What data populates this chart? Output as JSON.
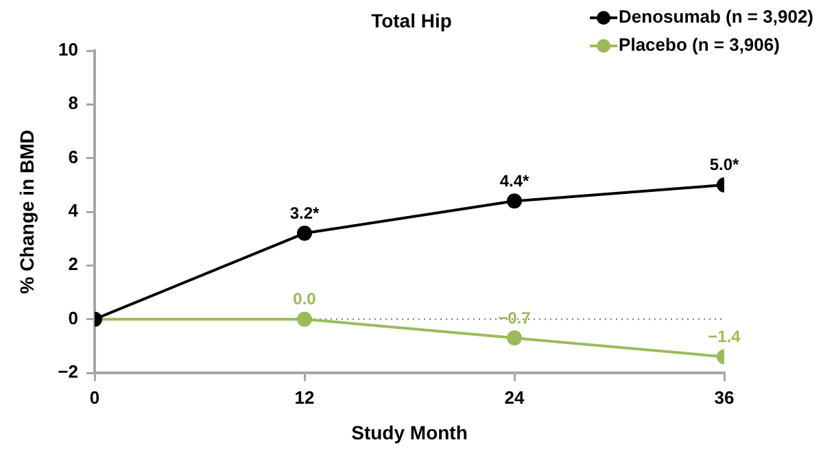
{
  "chart_data": {
    "type": "line",
    "title": "Total Hip",
    "xlabel": "Study Month",
    "ylabel": "% Change in BMD",
    "x": [
      0,
      12,
      24,
      36
    ],
    "series": [
      {
        "name": "Denosumab (n = 3,902)",
        "color": "#000000",
        "values": [
          0,
          3.2,
          4.4,
          5.0
        ],
        "value_labels": [
          null,
          "3.2*",
          "4.4*",
          "5.0*"
        ]
      },
      {
        "name": "Placebo (n = 3,906)",
        "color": "#9bbb59",
        "values": [
          0,
          0.0,
          -0.7,
          -1.4
        ],
        "value_labels": [
          null,
          "0.0",
          "−0.7",
          "−1.4"
        ]
      }
    ],
    "xlim": [
      0,
      36
    ],
    "xticks": [
      0,
      12,
      24,
      36
    ],
    "ylim": [
      -2,
      10
    ],
    "yticks": [
      {
        "value": -2,
        "label": "−2"
      },
      0,
      2,
      4,
      6,
      8,
      10
    ],
    "ref_lines": [
      {
        "axis": "y",
        "value": 0,
        "color": "#808080",
        "line_style": "dotted"
      }
    ],
    "legend": "top right",
    "marker": "circle",
    "line_style": "solid"
  }
}
